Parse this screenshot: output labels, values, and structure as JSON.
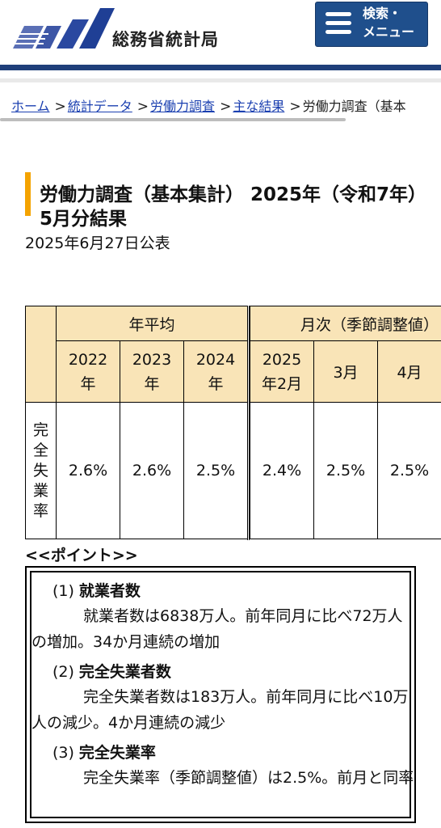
{
  "header": {
    "org_name": "総務省統計局",
    "menu_label_line1": "検索・",
    "menu_label_line2": "メニュー",
    "brand_color": "#1f4f8c"
  },
  "breadcrumb": {
    "items": [
      "ホーム",
      "統計データ",
      "労働力調査",
      "主な結果"
    ],
    "current": "労働力調査（基本"
  },
  "page": {
    "title": "労働力調査（基本集計） 2025年（令和7年）5月分結果",
    "published": "2025年6月27日公表"
  },
  "table": {
    "group_annual": "年平均",
    "group_monthly": "月次（季節調整値）",
    "col_2022": "2022年",
    "col_2023": "2023年",
    "col_2024": "2024年",
    "col_2025_2": "2025年2月",
    "col_3": "3月",
    "col_4": "4月",
    "row_label": "完全失業率",
    "row_label_chars": [
      "完",
      "全",
      "失",
      "業",
      "率"
    ],
    "values": [
      "2.6%",
      "2.6%",
      "2.5%",
      "2.4%",
      "2.5%",
      "2.5%"
    ]
  },
  "points": {
    "label": "<<ポイント>>",
    "items": [
      {
        "num": "(1)",
        "heading": "就業者数",
        "body": "就業者数は6838万人。前年同月に比べ72万人の増加。34か月連続の増加"
      },
      {
        "num": "(2)",
        "heading": "完全失業者数",
        "body": "完全失業者数は183万人。前年同月に比べ10万人の減少。4か月連続の減少"
      },
      {
        "num": "(3)",
        "heading": "完全失業率",
        "body": "完全失業率（季節調整値）は2.5%。前月と同率"
      }
    ]
  }
}
